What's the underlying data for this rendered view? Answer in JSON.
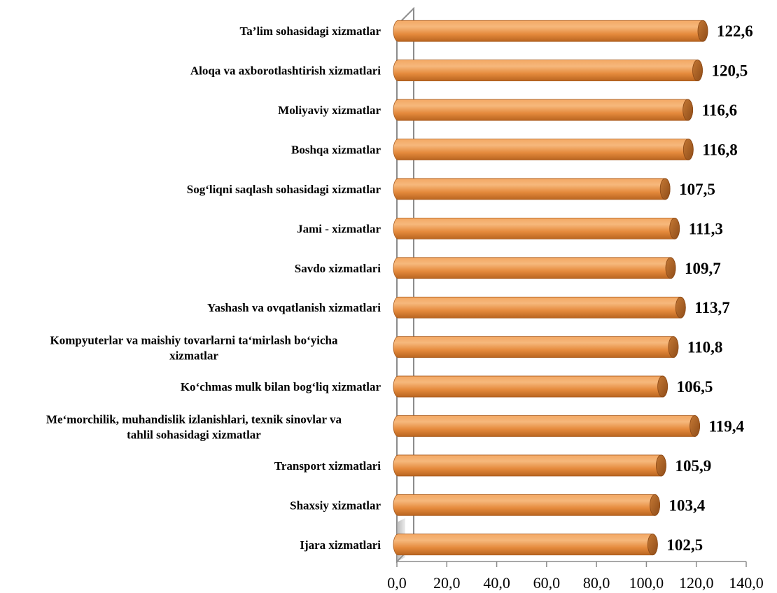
{
  "chart_data": {
    "type": "bar",
    "orientation": "horizontal",
    "style": "3d-cylinder",
    "categories": [
      "Ta’lim sohasidagi xizmatlar",
      "Aloqa va axborotlashtirish xizmatlari",
      "Moliyaviy  xizmatlar",
      "Boshqa xizmatlar",
      "Sog‘liqni saqlash sohasidagi xizmatlar",
      "Jami - xizmatlar",
      "Savdo xizmatlari",
      "Yashash va ovqatlanish xizmatlari",
      "Kompyuterlar va maishiy tovarlarni ta‘mirlash bo‘yicha xizmatlar",
      "Ko‘chmas mulk bilan bog‘liq xizmatlar",
      "Me‘morchilik, muhandislik izlanishlari, texnik sinovlar va tahlil sohasidagi xizmatlar",
      "Transport xizmatlari",
      "Shaxsiy xizmatlar",
      "Ijara xizmatlari"
    ],
    "category_lines": [
      [
        "Ta’lim sohasidagi xizmatlar"
      ],
      [
        "Aloqa va axborotlashtirish xizmatlari"
      ],
      [
        "Moliyaviy  xizmatlar"
      ],
      [
        "Boshqa xizmatlar"
      ],
      [
        "Sog‘liqni saqlash sohasidagi xizmatlar"
      ],
      [
        "Jami - xizmatlar"
      ],
      [
        "Savdo xizmatlari"
      ],
      [
        "Yashash va ovqatlanish xizmatlari"
      ],
      [
        "Kompyuterlar va maishiy tovarlarni ta‘mirlash bo‘yicha",
        "xizmatlar"
      ],
      [
        "Ko‘chmas mulk bilan bog‘liq xizmatlar"
      ],
      [
        "Me‘morchilik, muhandislik izlanishlari, texnik sinovlar va",
        "tahlil sohasidagi xizmatlar"
      ],
      [
        "Transport xizmatlari"
      ],
      [
        "Shaxsiy xizmatlar"
      ],
      [
        "Ijara xizmatlari"
      ]
    ],
    "values": [
      122.6,
      120.5,
      116.6,
      116.8,
      107.5,
      111.3,
      109.7,
      113.7,
      110.8,
      106.5,
      119.4,
      105.9,
      103.4,
      102.5
    ],
    "value_labels": [
      "122,6",
      "120,5",
      "116,6",
      "116,8",
      "107,5",
      "111,3",
      "109,7",
      "113,7",
      "110,8",
      "106,5",
      "119,4",
      "105,9",
      "103,4",
      "102,5"
    ],
    "x_ticks": [
      0,
      20,
      40,
      60,
      80,
      100,
      120,
      140
    ],
    "x_tick_labels": [
      "0,0",
      "20,0",
      "40,0",
      "60,0",
      "80,0",
      "100,0",
      "120,0",
      "140,0"
    ],
    "xlim": [
      0,
      140
    ],
    "grid": false,
    "legend": "none",
    "title": "",
    "xlabel": "",
    "ylabel": "",
    "colors": {
      "bar_light": "#f6b16e",
      "bar_mid": "#e58a3c",
      "bar_dark": "#b86420",
      "bar_cap": "#a35a20",
      "bar_cap_light": "#c77a36",
      "axis": "#8c8c8c",
      "wall_shadow": "#c8c8c8"
    }
  }
}
